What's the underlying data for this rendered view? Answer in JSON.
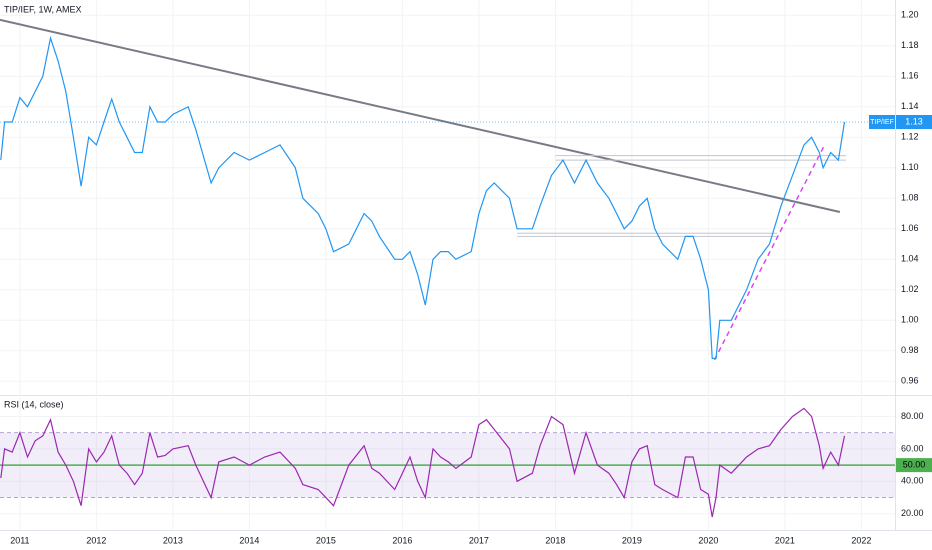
{
  "chart_data": [
    {
      "type": "line",
      "title": "TIP/IEF, 1W, AMEX",
      "x": [
        2010.75,
        2010.8,
        2010.9,
        2011.0,
        2011.1,
        2011.2,
        2011.3,
        2011.4,
        2011.5,
        2011.6,
        2011.7,
        2011.8,
        2011.9,
        2012.0,
        2012.1,
        2012.2,
        2012.3,
        2012.4,
        2012.5,
        2012.6,
        2012.7,
        2012.8,
        2012.9,
        2013.0,
        2013.2,
        2013.3,
        2013.5,
        2013.6,
        2013.8,
        2014.0,
        2014.2,
        2014.4,
        2014.6,
        2014.7,
        2014.9,
        2015.0,
        2015.1,
        2015.3,
        2015.5,
        2015.6,
        2015.7,
        2015.9,
        2016.0,
        2016.1,
        2016.2,
        2016.3,
        2016.4,
        2016.5,
        2016.6,
        2016.7,
        2016.9,
        2017.0,
        2017.1,
        2017.2,
        2017.4,
        2017.5,
        2017.7,
        2017.8,
        2017.95,
        2018.1,
        2018.25,
        2018.4,
        2018.55,
        2018.7,
        2018.8,
        2018.9,
        2019.0,
        2019.1,
        2019.2,
        2019.3,
        2019.4,
        2019.6,
        2019.7,
        2019.8,
        2019.9,
        2020.0,
        2020.05,
        2020.1,
        2020.15,
        2020.3,
        2020.5,
        2020.65,
        2020.8,
        2020.95,
        2021.1,
        2021.25,
        2021.35,
        2021.45,
        2021.5,
        2021.6,
        2021.7,
        2021.78
      ],
      "series": [
        {
          "name": "TIP/IEF",
          "color": "#2196f3",
          "values": [
            1.105,
            1.13,
            1.13,
            1.146,
            1.14,
            1.15,
            1.16,
            1.185,
            1.17,
            1.15,
            1.12,
            1.088,
            1.12,
            1.115,
            1.13,
            1.145,
            1.13,
            1.12,
            1.11,
            1.11,
            1.14,
            1.13,
            1.13,
            1.135,
            1.14,
            1.125,
            1.09,
            1.1,
            1.11,
            1.105,
            1.11,
            1.115,
            1.1,
            1.08,
            1.07,
            1.06,
            1.045,
            1.05,
            1.07,
            1.065,
            1.055,
            1.04,
            1.04,
            1.045,
            1.03,
            1.01,
            1.04,
            1.045,
            1.045,
            1.04,
            1.045,
            1.07,
            1.085,
            1.09,
            1.08,
            1.06,
            1.06,
            1.075,
            1.095,
            1.105,
            1.09,
            1.105,
            1.09,
            1.08,
            1.07,
            1.06,
            1.065,
            1.075,
            1.08,
            1.06,
            1.05,
            1.04,
            1.055,
            1.055,
            1.04,
            1.02,
            0.975,
            0.975,
            1.0,
            1.0,
            1.02,
            1.04,
            1.05,
            1.075,
            1.095,
            1.115,
            1.12,
            1.11,
            1.1,
            1.11,
            1.105,
            1.13
          ]
        }
      ],
      "trendlines": [
        {
          "x": [
            2010.74,
            2021.72
          ],
          "y": [
            1.197,
            1.071
          ],
          "color": "#787b86"
        },
        {
          "x": [
            2020.08,
            2021.52
          ],
          "y": [
            0.974,
            1.115
          ],
          "color": "#e040fb",
          "dash": true
        },
        {
          "x": [
            2018.0,
            2021.8
          ],
          "y": [
            1.108,
            1.108
          ],
          "color": "#c3c6ce"
        },
        {
          "x": [
            2018.0,
            2021.8
          ],
          "y": [
            1.105,
            1.105
          ],
          "color": "#c3c6ce"
        },
        {
          "x": [
            2017.5,
            2020.9
          ],
          "y": [
            1.057,
            1.057
          ],
          "color": "#c3c6ce"
        },
        {
          "x": [
            2017.5,
            2020.9
          ],
          "y": [
            1.055,
            1.055
          ],
          "color": "#c3c6ce"
        }
      ],
      "xlim": [
        2010.74,
        2022.44
      ],
      "xticks": [
        2011,
        2012,
        2013,
        2014,
        2015,
        2016,
        2017,
        2018,
        2019,
        2020,
        2021,
        2022
      ],
      "ylim": [
        0.951,
        1.21
      ],
      "yticks": [
        {
          "value": 1.2,
          "label": "1.20"
        },
        {
          "value": 1.18,
          "label": "1.18"
        },
        {
          "value": 1.16,
          "label": "1.16"
        },
        {
          "value": 1.14,
          "label": "1.14"
        },
        {
          "value": 1.12,
          "label": "1.12"
        },
        {
          "value": 1.1,
          "label": "1.10"
        },
        {
          "value": 1.08,
          "label": "1.08"
        },
        {
          "value": 1.06,
          "label": "1.06"
        },
        {
          "value": 1.04,
          "label": "1.04"
        },
        {
          "value": 1.02,
          "label": "1.02"
        },
        {
          "value": 1.0,
          "label": "1.00"
        },
        {
          "value": 0.98,
          "label": "0.98"
        },
        {
          "value": 0.96,
          "label": "0.96"
        }
      ],
      "grid": true
    },
    {
      "type": "line",
      "title": "RSI (14, close)",
      "color": "#9c27b0",
      "x": [
        2010.75,
        2010.8,
        2010.9,
        2011.0,
        2011.1,
        2011.2,
        2011.3,
        2011.4,
        2011.5,
        2011.6,
        2011.7,
        2011.8,
        2011.9,
        2012.0,
        2012.1,
        2012.2,
        2012.3,
        2012.4,
        2012.5,
        2012.6,
        2012.7,
        2012.8,
        2012.9,
        2013.0,
        2013.2,
        2013.3,
        2013.5,
        2013.6,
        2013.8,
        2014.0,
        2014.2,
        2014.4,
        2014.6,
        2014.7,
        2014.9,
        2015.0,
        2015.1,
        2015.3,
        2015.5,
        2015.6,
        2015.7,
        2015.9,
        2016.0,
        2016.1,
        2016.2,
        2016.3,
        2016.4,
        2016.5,
        2016.6,
        2016.7,
        2016.9,
        2017.0,
        2017.1,
        2017.2,
        2017.4,
        2017.5,
        2017.7,
        2017.8,
        2017.95,
        2018.1,
        2018.25,
        2018.4,
        2018.55,
        2018.7,
        2018.8,
        2018.9,
        2019.0,
        2019.1,
        2019.2,
        2019.3,
        2019.4,
        2019.6,
        2019.7,
        2019.8,
        2019.9,
        2020.0,
        2020.05,
        2020.1,
        2020.15,
        2020.3,
        2020.5,
        2020.65,
        2020.8,
        2020.95,
        2021.1,
        2021.25,
        2021.35,
        2021.45,
        2021.5,
        2021.6,
        2021.7,
        2021.78
      ],
      "values": [
        42,
        60,
        58,
        70,
        55,
        65,
        68,
        78,
        58,
        50,
        40,
        25,
        60,
        52,
        58,
        68,
        50,
        45,
        38,
        45,
        70,
        55,
        56,
        60,
        62,
        50,
        30,
        52,
        55,
        50,
        55,
        58,
        48,
        38,
        35,
        30,
        25,
        50,
        62,
        48,
        45,
        35,
        45,
        55,
        40,
        30,
        60,
        55,
        52,
        48,
        55,
        75,
        78,
        72,
        60,
        40,
        45,
        62,
        80,
        75,
        45,
        70,
        50,
        45,
        38,
        30,
        52,
        60,
        62,
        38,
        35,
        30,
        55,
        55,
        35,
        32,
        18,
        30,
        50,
        45,
        55,
        60,
        62,
        72,
        80,
        85,
        80,
        62,
        48,
        58,
        50,
        68
      ],
      "band": [
        30,
        70
      ],
      "band_color": "#7e57c2",
      "level": {
        "value": 50,
        "label": "50.00"
      },
      "level_color": "#4caf50",
      "xlim": [
        2010.74,
        2022.44
      ],
      "ylim": [
        10,
        92
      ],
      "yticks": [
        {
          "value": 80,
          "label": "80.00"
        },
        {
          "value": 60,
          "label": "60.00"
        },
        {
          "value": 40,
          "label": "40.00"
        },
        {
          "value": 20,
          "label": "20.00"
        }
      ],
      "grid": true
    }
  ]
}
